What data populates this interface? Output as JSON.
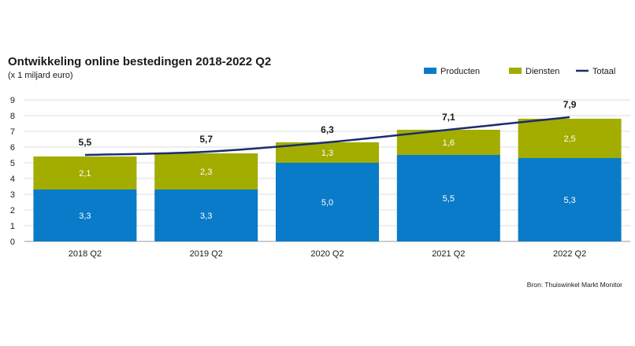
{
  "chart_data": {
    "type": "bar",
    "stacked": true,
    "title": "Ontwikkeling online bestedingen 2018-2022 Q2",
    "subtitle": "(x 1 miljard euro)",
    "categories": [
      "2018 Q2",
      "2019 Q2",
      "2020 Q2",
      "2021 Q2",
      "2022 Q2"
    ],
    "series": [
      {
        "name": "Producten",
        "type": "bar",
        "color": "#0a7bc8",
        "values": [
          3.3,
          3.3,
          5.0,
          5.5,
          5.3
        ],
        "labels": [
          "3,3",
          "3,3",
          "5,0",
          "5,5",
          "5,3"
        ]
      },
      {
        "name": "Diensten",
        "type": "bar",
        "color": "#a2ad00",
        "values": [
          2.1,
          2.3,
          1.3,
          1.6,
          2.5
        ],
        "labels": [
          "2,1",
          "2,3",
          "1,3",
          "1,6",
          "2,5"
        ]
      },
      {
        "name": "Totaal",
        "type": "line",
        "color": "#1b2c6e",
        "values": [
          5.5,
          5.7,
          6.3,
          7.1,
          7.9
        ],
        "labels": [
          "5,5",
          "5,7",
          "6,3",
          "7,1",
          "7,9"
        ]
      }
    ],
    "ylim": [
      0,
      9
    ],
    "yticks": [
      0,
      1,
      2,
      3,
      4,
      5,
      6,
      7,
      8,
      9
    ],
    "grid": true,
    "legend_position": "top-right",
    "source": "Bron: Thuiswinkel Markt Monitor"
  }
}
